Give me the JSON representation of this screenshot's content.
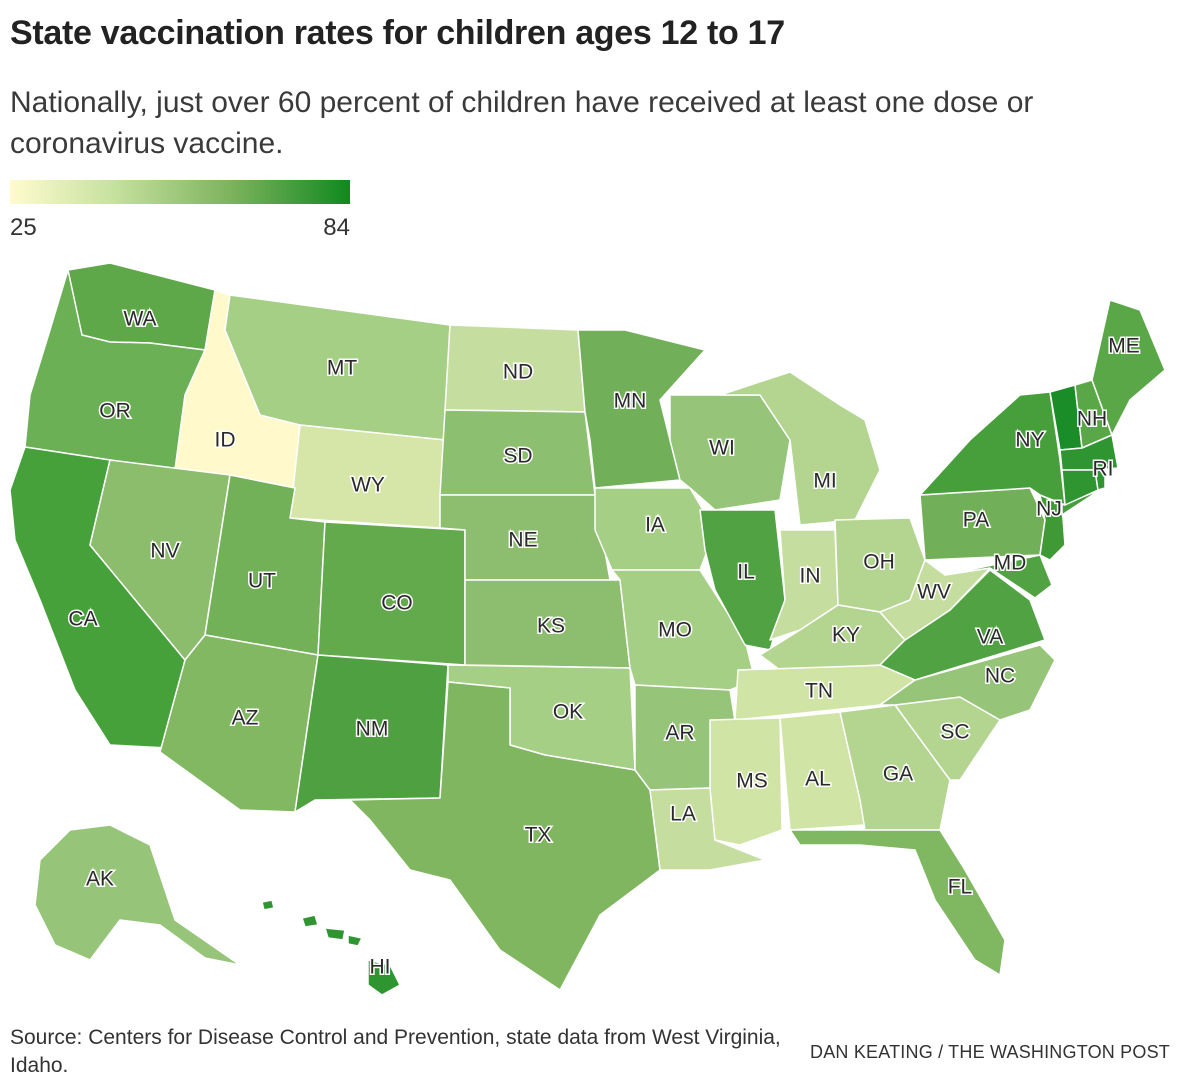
{
  "title": "State vaccination rates for children ages 12 to 17",
  "subtitle": "Nationally, just over 60 percent of children have received at least one dose or coronavirus vaccine.",
  "legend": {
    "min_label": "25",
    "max_label": "84",
    "min_color": "#fffbcf",
    "max_color": "#10891f"
  },
  "states": {
    "WA": "WA",
    "OR": "OR",
    "CA": "CA",
    "ID": "ID",
    "NV": "NV",
    "MT": "MT",
    "WY": "WY",
    "UT": "UT",
    "AZ": "AZ",
    "CO": "CO",
    "NM": "NM",
    "ND": "ND",
    "SD": "SD",
    "NE": "NE",
    "KS": "KS",
    "OK": "OK",
    "TX": "TX",
    "MN": "MN",
    "IA": "IA",
    "MO": "MO",
    "AR": "AR",
    "LA": "LA",
    "WI": "WI",
    "IL": "IL",
    "MI": "MI",
    "IN": "IN",
    "OH": "OH",
    "KY": "KY",
    "TN": "TN",
    "MS": "MS",
    "AL": "AL",
    "GA": "GA",
    "FL": "FL",
    "SC": "SC",
    "NC": "NC",
    "VA": "VA",
    "WV": "WV",
    "PA": "PA",
    "NY": "NY",
    "ME": "ME",
    "NH": "NH",
    "RI": "RI",
    "NJ": "NJ",
    "MD": "MD",
    "AK": "AK",
    "HI": "HI"
  },
  "source": "Source: Centers for Disease Control and Prevention, state data from West Virginia, Idaho.",
  "credit": "DAN KEATING / THE WASHINGTON POST"
}
